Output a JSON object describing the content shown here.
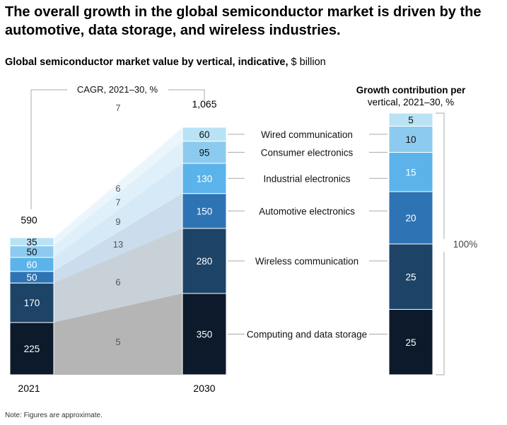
{
  "headline": "The overall growth in the global semiconductor market is driven by the automotive, data storage, and wireless industries.",
  "subtitle": {
    "bold": "Global semiconductor market value by vertical, indicative,",
    "unit": " $ billion"
  },
  "note": "Note: Figures are approximate.",
  "chart_data": {
    "type": "bar",
    "stacked": true,
    "title": "Global semiconductor market value by vertical, indicative, $ billion",
    "categories": [
      "2021",
      "2030"
    ],
    "totals": [
      "590",
      "1,065"
    ],
    "cagr_title": "CAGR, 2021–30, %",
    "growth_title_line1": "Growth contribution per",
    "growth_title_line2": "vertical, 2021–30, %",
    "growth_total_label": "100%",
    "series": [
      {
        "name": "Computing and data storage",
        "values": [
          225,
          350
        ],
        "cagr": 5,
        "growth": 25,
        "color": "#0c1a2b",
        "fade": "#b5b5b5"
      },
      {
        "name": "Wireless communication",
        "values": [
          170,
          280
        ],
        "cagr": 6,
        "growth": 25,
        "color": "#1d4467",
        "fade": "#c9d1d8"
      },
      {
        "name": "Automotive electronics",
        "values": [
          50,
          150
        ],
        "cagr": 13,
        "growth": 20,
        "color": "#2e74b5",
        "fade": "#cbdcec"
      },
      {
        "name": "Industrial electronics",
        "values": [
          60,
          130
        ],
        "cagr": 9,
        "growth": 15,
        "color": "#5bb3ea",
        "fade": "#d5e9f7"
      },
      {
        "name": "Consumer electronics",
        "values": [
          50,
          95
        ],
        "cagr": 7,
        "growth": 10,
        "color": "#8ccbef",
        "fade": "#e0f0fa"
      },
      {
        "name": "Wired communication",
        "values": [
          35,
          60
        ],
        "cagr": 6,
        "growth": 5,
        "color": "#b9e3f5",
        "fade": "#eaf6fc"
      }
    ],
    "top_cagr": 7
  }
}
